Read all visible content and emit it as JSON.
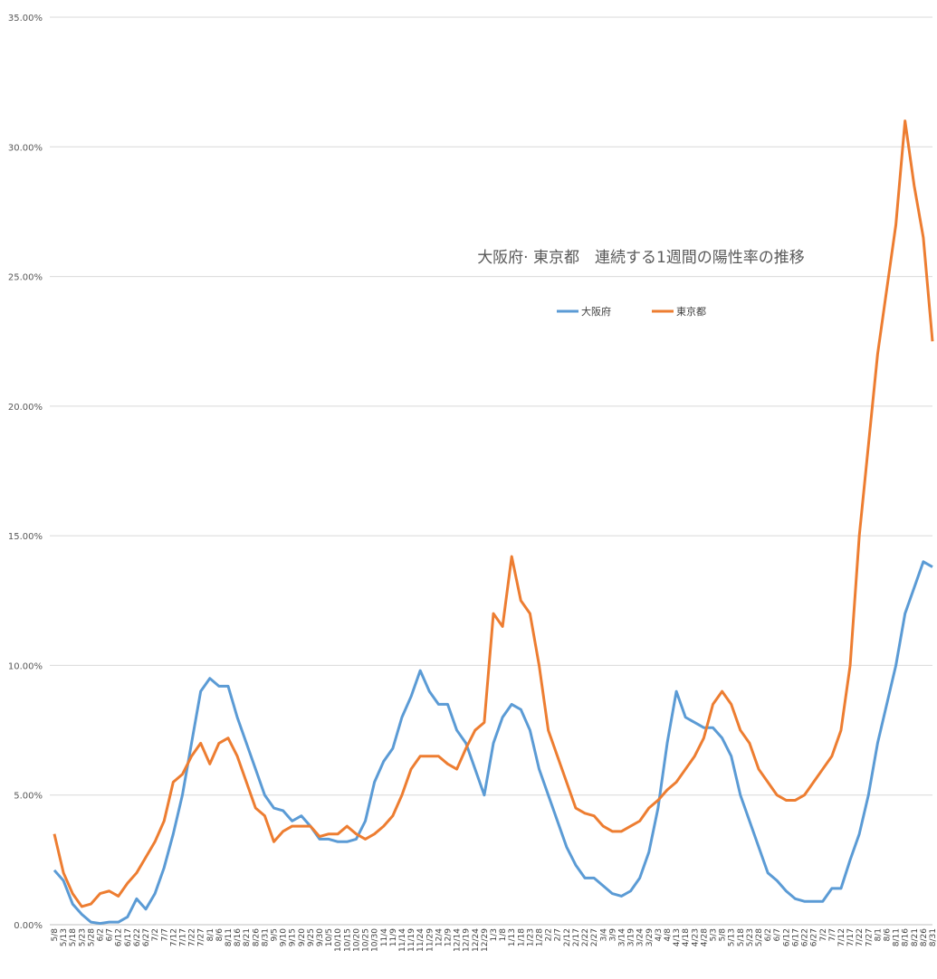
{
  "chart_data": {
    "type": "line",
    "title": "大阪府· 東京都　連続する1週間の陽性率の推移",
    "categories": [
      "5/8",
      "5/13",
      "5/18",
      "5/23",
      "5/28",
      "6/2",
      "6/7",
      "6/12",
      "6/17",
      "6/22",
      "6/27",
      "7/2",
      "7/7",
      "7/12",
      "7/17",
      "7/22",
      "7/27",
      "8/1",
      "8/6",
      "8/11",
      "8/16",
      "8/21",
      "8/26",
      "8/31",
      "9/5",
      "9/10",
      "9/15",
      "9/20",
      "9/25",
      "9/30",
      "10/5",
      "10/10",
      "10/15",
      "10/20",
      "10/25",
      "10/30",
      "11/4",
      "11/9",
      "11/14",
      "11/19",
      "11/24",
      "11/29",
      "12/4",
      "12/9",
      "12/14",
      "12/19",
      "12/24",
      "12/29",
      "1/3",
      "1/8",
      "1/13",
      "1/18",
      "1/23",
      "1/28",
      "2/2",
      "2/7",
      "2/12",
      "2/17",
      "2/22",
      "2/27",
      "3/4",
      "3/9",
      "3/14",
      "3/19",
      "3/24",
      "3/29",
      "4/3",
      "4/8",
      "4/13",
      "4/18",
      "4/23",
      "4/28",
      "5/3",
      "5/8",
      "5/13",
      "5/18",
      "5/23",
      "5/28",
      "6/2",
      "6/7",
      "6/12",
      "6/17",
      "6/22",
      "6/27",
      "7/2",
      "7/7",
      "7/12",
      "7/17",
      "7/22",
      "7/27",
      "8/1",
      "8/6",
      "8/11",
      "8/16",
      "8/21",
      "8/26",
      "8/31"
    ],
    "series": [
      {
        "name": "大阪府",
        "color": "#5b9bd5",
        "values": [
          2.1,
          1.7,
          0.8,
          0.4,
          0.1,
          0.05,
          0.1,
          0.1,
          0.3,
          1.0,
          0.6,
          1.2,
          2.2,
          3.5,
          5.0,
          7.0,
          9.0,
          9.5,
          9.2,
          9.2,
          8.0,
          7.0,
          6.0,
          5.0,
          4.5,
          4.4,
          4.0,
          4.2,
          3.8,
          3.3,
          3.3,
          3.2,
          3.2,
          3.3,
          4.0,
          5.5,
          6.3,
          6.8,
          8.0,
          8.8,
          9.8,
          9.0,
          8.5,
          8.5,
          7.5,
          7.0,
          6.0,
          5.0,
          7.0,
          8.0,
          8.5,
          8.3,
          7.5,
          6.0,
          5.0,
          4.0,
          3.0,
          2.3,
          1.8,
          1.8,
          1.5,
          1.2,
          1.1,
          1.3,
          1.8,
          2.8,
          4.5,
          7.0,
          9.0,
          8.0,
          7.8,
          7.6,
          7.6,
          7.2,
          6.5,
          5.0,
          4.0,
          3.0,
          2.0,
          1.7,
          1.3,
          1.0,
          0.9,
          0.9,
          0.9,
          1.4,
          1.4,
          2.5,
          3.5,
          5.0,
          7.0,
          8.5,
          10.0,
          12.0,
          13.0,
          14.0,
          13.8
        ]
      },
      {
        "name": "東京都",
        "color": "#ed7d31",
        "values": [
          3.5,
          2.0,
          1.2,
          0.7,
          0.8,
          1.2,
          1.3,
          1.1,
          1.6,
          2.0,
          2.6,
          3.2,
          4.0,
          5.5,
          5.8,
          6.5,
          7.0,
          6.2,
          7.0,
          7.2,
          6.5,
          5.5,
          4.5,
          4.2,
          3.2,
          3.6,
          3.8,
          3.8,
          3.8,
          3.4,
          3.5,
          3.5,
          3.8,
          3.5,
          3.3,
          3.5,
          3.8,
          4.2,
          5.0,
          6.0,
          6.5,
          6.5,
          6.5,
          6.2,
          6.0,
          6.8,
          7.5,
          7.8,
          12.0,
          11.5,
          14.2,
          12.5,
          12.0,
          10.0,
          7.5,
          6.5,
          5.5,
          4.5,
          4.3,
          4.2,
          3.8,
          3.6,
          3.6,
          3.8,
          4.0,
          4.5,
          4.8,
          5.2,
          5.5,
          6.0,
          6.5,
          7.2,
          8.5,
          9.0,
          8.5,
          7.5,
          7.0,
          6.0,
          5.5,
          5.0,
          4.8,
          4.8,
          5.0,
          5.5,
          6.0,
          6.5,
          7.5,
          10.0,
          15.0,
          18.5,
          22.0,
          24.5,
          27.0,
          31.0,
          28.5,
          26.5,
          22.5
        ]
      }
    ],
    "ylim": [
      0,
      35
    ],
    "yticks": [
      {
        "value": 0,
        "label": "0.00%"
      },
      {
        "value": 5,
        "label": "5.00%"
      },
      {
        "value": 10,
        "label": "10.00%"
      },
      {
        "value": 15,
        "label": "15.00%"
      },
      {
        "value": 20,
        "label": "20.00%"
      },
      {
        "value": 25,
        "label": "25.00%"
      },
      {
        "value": 30,
        "label": "30.00%"
      },
      {
        "value": 35,
        "label": "35.00%"
      }
    ],
    "grid": true
  }
}
